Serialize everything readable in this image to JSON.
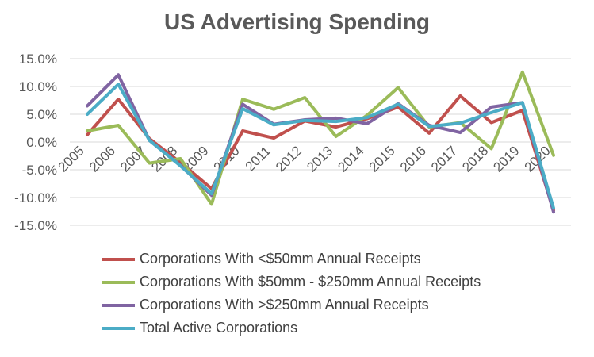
{
  "chart_data": {
    "type": "line",
    "title": "US Advertising Spending",
    "xlabel": "",
    "ylabel": "",
    "ylim": [
      -15,
      15
    ],
    "y_ticks": [
      "15.0%",
      "10.0%",
      "5.0%",
      "0.0%",
      "-5.0%",
      "-10.0%",
      "-15.0%"
    ],
    "y_tick_values": [
      15,
      10,
      5,
      0,
      -5,
      -10,
      -15
    ],
    "grid": true,
    "legend_position": "bottom",
    "categories": [
      "2005",
      "2006",
      "2007",
      "2008",
      "2009",
      "2010",
      "2011",
      "2012",
      "2013",
      "2014",
      "2015",
      "2016",
      "2017",
      "2018",
      "2019",
      "2020"
    ],
    "series": [
      {
        "name": "Corporations With <$50mm Annual Receipts",
        "color": "#c0504d",
        "values": [
          1.3,
          7.7,
          0.6,
          -3.7,
          -8.4,
          2.0,
          0.7,
          3.8,
          2.7,
          4.2,
          6.3,
          1.6,
          8.3,
          3.5,
          5.7,
          -12.3
        ]
      },
      {
        "name": "Corporations With $50mm - $250mm Annual Receipts",
        "color": "#9bbb59",
        "values": [
          2.0,
          3.0,
          -3.8,
          -3.0,
          -11.2,
          7.7,
          5.9,
          8.0,
          1.0,
          4.8,
          9.8,
          2.7,
          3.5,
          -1.2,
          12.6,
          -2.4
        ]
      },
      {
        "name": "Corporations With >$250mm Annual Receipts",
        "color": "#8064a2",
        "values": [
          6.5,
          12.1,
          0.3,
          -4.2,
          -9.6,
          6.8,
          3.2,
          4.0,
          4.3,
          3.3,
          6.9,
          3.0,
          1.7,
          6.3,
          7.1,
          -12.6
        ]
      },
      {
        "name": "Total Active Corporations",
        "color": "#4bacc6",
        "values": [
          5.0,
          10.4,
          0.3,
          -4.3,
          -9.3,
          6.0,
          3.1,
          3.9,
          3.7,
          4.4,
          6.8,
          2.8,
          3.4,
          5.3,
          7.1,
          -11.9
        ]
      }
    ]
  }
}
